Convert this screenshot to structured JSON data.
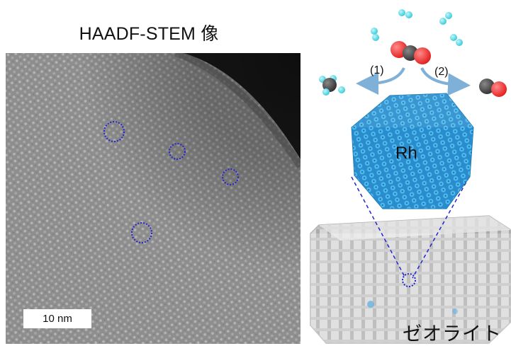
{
  "title": "HAADF-STEM 像",
  "scale_bar": "10 nm",
  "particle_label": "Rh",
  "support_label": "ゼオライト",
  "pathways": [
    "(1)",
    "(2)"
  ],
  "colors": {
    "carbon": "#4a4a4a",
    "oxygen": "#ff3b3b",
    "hydrogen": "#3fd3e0",
    "rhodium": "#2fa3e0",
    "arrow": "#7fb0d8",
    "highlight": "#2323d0"
  }
}
